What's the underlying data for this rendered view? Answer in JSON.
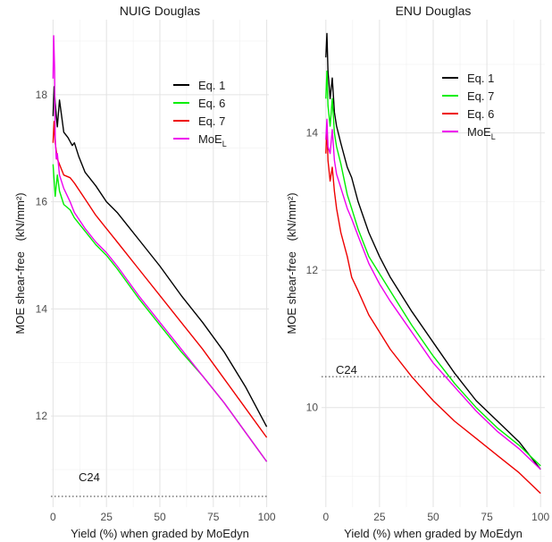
{
  "chart_data": [
    {
      "type": "line",
      "title": "NUIG Douglas",
      "xlabel": "Yield (%) when graded by MoEdyn",
      "ylabel_main": "MOE shear-free",
      "ylabel_unit": "(kN/mm²)",
      "xlim": [
        -1,
        101
      ],
      "ylim": [
        10.3,
        19.4
      ],
      "xticks": [
        0,
        25,
        50,
        75,
        100
      ],
      "yticks": [
        12,
        14,
        16,
        18
      ],
      "grid": true,
      "legend_position": "top-right",
      "reference_line": {
        "label": "C24",
        "y": 10.5
      },
      "series": [
        {
          "name": "Eq. 1",
          "color": "#000000",
          "points": [
            [
              0,
              17.6
            ],
            [
              0.5,
              18.15
            ],
            [
              1,
              17.85
            ],
            [
              2,
              17.4
            ],
            [
              3,
              17.9
            ],
            [
              4,
              17.6
            ],
            [
              5,
              17.3
            ],
            [
              7,
              17.2
            ],
            [
              9,
              17.05
            ],
            [
              10,
              17.1
            ],
            [
              12,
              16.85
            ],
            [
              15,
              16.55
            ],
            [
              20,
              16.3
            ],
            [
              25,
              16.0
            ],
            [
              30,
              15.8
            ],
            [
              40,
              15.3
            ],
            [
              50,
              14.8
            ],
            [
              60,
              14.25
            ],
            [
              70,
              13.75
            ],
            [
              80,
              13.2
            ],
            [
              90,
              12.55
            ],
            [
              100,
              11.8
            ]
          ]
        },
        {
          "name": "Eq. 6",
          "color": "#00ee00",
          "points": [
            [
              0,
              16.7
            ],
            [
              0.5,
              16.4
            ],
            [
              1,
              16.1
            ],
            [
              2,
              16.5
            ],
            [
              3,
              16.2
            ],
            [
              5,
              15.95
            ],
            [
              8,
              15.85
            ],
            [
              10,
              15.7
            ],
            [
              15,
              15.45
            ],
            [
              20,
              15.2
            ],
            [
              25,
              15.0
            ],
            [
              30,
              14.75
            ],
            [
              40,
              14.2
            ],
            [
              50,
              13.7
            ],
            [
              60,
              13.2
            ],
            [
              70,
              12.75
            ],
            [
              80,
              12.25
            ],
            [
              90,
              11.7
            ],
            [
              100,
              11.15
            ]
          ]
        },
        {
          "name": "Eq. 7",
          "color": "#ee0000",
          "points": [
            [
              0,
              17.1
            ],
            [
              0.5,
              17.5
            ],
            [
              1,
              17.1
            ],
            [
              2,
              16.8
            ],
            [
              3,
              16.7
            ],
            [
              5,
              16.5
            ],
            [
              8,
              16.45
            ],
            [
              10,
              16.35
            ],
            [
              15,
              16.05
            ],
            [
              20,
              15.75
            ],
            [
              25,
              15.5
            ],
            [
              30,
              15.25
            ],
            [
              40,
              14.75
            ],
            [
              50,
              14.25
            ],
            [
              60,
              13.75
            ],
            [
              70,
              13.25
            ],
            [
              80,
              12.7
            ],
            [
              90,
              12.15
            ],
            [
              100,
              11.6
            ]
          ]
        },
        {
          "name": "MoE_L",
          "color": "#ee00ee",
          "points": [
            [
              0,
              18.3
            ],
            [
              0.3,
              19.1
            ],
            [
              0.7,
              18.5
            ],
            [
              1,
              17.2
            ],
            [
              1.5,
              16.8
            ],
            [
              2,
              16.9
            ],
            [
              3,
              16.5
            ],
            [
              5,
              16.25
            ],
            [
              8,
              16.0
            ],
            [
              10,
              15.8
            ],
            [
              15,
              15.5
            ],
            [
              20,
              15.25
            ],
            [
              25,
              15.05
            ],
            [
              30,
              14.8
            ],
            [
              40,
              14.25
            ],
            [
              50,
              13.75
            ],
            [
              60,
              13.25
            ],
            [
              70,
              12.75
            ],
            [
              80,
              12.25
            ],
            [
              90,
              11.7
            ],
            [
              100,
              11.15
            ]
          ]
        }
      ]
    },
    {
      "type": "line",
      "title": "ENU Douglas",
      "xlabel": "Yield (%) when graded by MoEdyn",
      "ylabel_main": "MOE shear-free",
      "ylabel_unit": "(kN/mm²)",
      "xlim": [
        -2,
        102
      ],
      "ylim": [
        8.55,
        15.65
      ],
      "xticks": [
        0,
        25,
        50,
        75,
        100
      ],
      "yticks": [
        10,
        12,
        14
      ],
      "grid": true,
      "legend_position": "top-right",
      "reference_line": {
        "label": "C24",
        "y": 10.45
      },
      "series": [
        {
          "name": "Eq. 1",
          "color": "#000000",
          "points": [
            [
              0,
              15.1
            ],
            [
              0.5,
              15.45
            ],
            [
              1,
              14.9
            ],
            [
              2,
              14.5
            ],
            [
              3,
              14.8
            ],
            [
              4,
              14.3
            ],
            [
              5,
              14.1
            ],
            [
              7,
              13.85
            ],
            [
              10,
              13.5
            ],
            [
              12,
              13.35
            ],
            [
              15,
              13.0
            ],
            [
              20,
              12.55
            ],
            [
              25,
              12.2
            ],
            [
              30,
              11.9
            ],
            [
              40,
              11.4
            ],
            [
              50,
              10.95
            ],
            [
              60,
              10.5
            ],
            [
              70,
              10.1
            ],
            [
              80,
              9.8
            ],
            [
              90,
              9.5
            ],
            [
              100,
              9.1
            ]
          ]
        },
        {
          "name": "Eq. 7",
          "color": "#00ee00",
          "points": [
            [
              0,
              14.5
            ],
            [
              0.5,
              14.9
            ],
            [
              1,
              14.4
            ],
            [
              2,
              14.1
            ],
            [
              3,
              14.5
            ],
            [
              4,
              14.0
            ],
            [
              5,
              13.8
            ],
            [
              7,
              13.55
            ],
            [
              10,
              13.1
            ],
            [
              12,
              12.9
            ],
            [
              15,
              12.6
            ],
            [
              20,
              12.2
            ],
            [
              25,
              11.95
            ],
            [
              30,
              11.7
            ],
            [
              40,
              11.2
            ],
            [
              50,
              10.75
            ],
            [
              60,
              10.35
            ],
            [
              70,
              10.0
            ],
            [
              80,
              9.7
            ],
            [
              90,
              9.45
            ],
            [
              100,
              9.15
            ]
          ]
        },
        {
          "name": "Eq. 6",
          "color": "#ee0000",
          "points": [
            [
              0,
              13.7
            ],
            [
              0.5,
              14.1
            ],
            [
              1,
              13.6
            ],
            [
              2,
              13.3
            ],
            [
              3,
              13.5
            ],
            [
              4,
              13.15
            ],
            [
              5,
              12.9
            ],
            [
              7,
              12.55
            ],
            [
              10,
              12.2
            ],
            [
              12,
              11.9
            ],
            [
              15,
              11.7
            ],
            [
              20,
              11.35
            ],
            [
              25,
              11.1
            ],
            [
              30,
              10.85
            ],
            [
              40,
              10.45
            ],
            [
              50,
              10.1
            ],
            [
              60,
              9.8
            ],
            [
              70,
              9.55
            ],
            [
              80,
              9.3
            ],
            [
              90,
              9.05
            ],
            [
              100,
              8.75
            ]
          ]
        },
        {
          "name": "MoE_L",
          "color": "#ee00ee",
          "points": [
            [
              0,
              13.9
            ],
            [
              0.5,
              14.2
            ],
            [
              1,
              13.8
            ],
            [
              2,
              13.7
            ],
            [
              3,
              14.05
            ],
            [
              4,
              13.6
            ],
            [
              5,
              13.4
            ],
            [
              7,
              13.2
            ],
            [
              10,
              12.9
            ],
            [
              12,
              12.75
            ],
            [
              15,
              12.5
            ],
            [
              20,
              12.1
            ],
            [
              25,
              11.8
            ],
            [
              30,
              11.55
            ],
            [
              40,
              11.1
            ],
            [
              50,
              10.65
            ],
            [
              60,
              10.3
            ],
            [
              70,
              9.95
            ],
            [
              80,
              9.65
            ],
            [
              90,
              9.4
            ],
            [
              100,
              9.1
            ]
          ]
        }
      ]
    }
  ]
}
